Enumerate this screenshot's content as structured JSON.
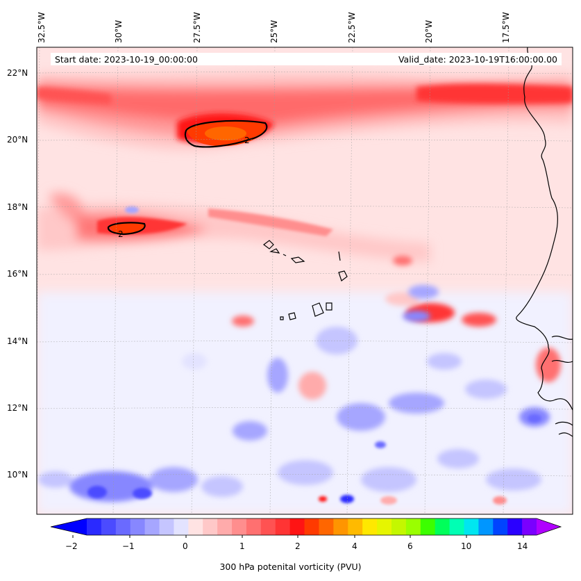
{
  "header": {
    "start_date": "Start date: 2023-10-19_00:00:00",
    "valid_date": "Valid_date: 2023-10-19T16:00:00.00"
  },
  "map": {
    "longitude_labels": [
      "32.5°W",
      "30°W",
      "27.5°W",
      "25°W",
      "22.5°W",
      "20°W",
      "17.5°W"
    ],
    "latitude_labels": [
      "22°N",
      "20°N",
      "18°N",
      "16°N",
      "14°N",
      "12°N",
      "10°N"
    ],
    "contour_level_label": "2",
    "colors": {
      "land_outline": "#000000",
      "gridlines": "#9e9e9e"
    }
  },
  "colorbar": {
    "label": "300 hPa potenital vorticity (PVU)",
    "tick_labels": [
      "-2",
      "-1",
      "0",
      "1",
      "2",
      "4",
      "6",
      "10",
      "14"
    ],
    "colors": [
      "#0000ff",
      "#2a2aff",
      "#4b4bff",
      "#6a6aff",
      "#8787ff",
      "#a6a6ff",
      "#c5c5ff",
      "#e3e3ff",
      "#ffe3e3",
      "#ffc8c8",
      "#ffabab",
      "#ff8e8e",
      "#ff7070",
      "#ff5252",
      "#ff3434",
      "#ff1414",
      "#ff3a00",
      "#ff6600",
      "#ff9500",
      "#ffba00",
      "#ffe800",
      "#e6f500",
      "#c4f700",
      "#9aff00",
      "#3cff00",
      "#00ff5a",
      "#00ffb4",
      "#00e6f0",
      "#0096ff",
      "#0044ff",
      "#2a00ff",
      "#7a00ff",
      "#b000ff"
    ]
  }
}
